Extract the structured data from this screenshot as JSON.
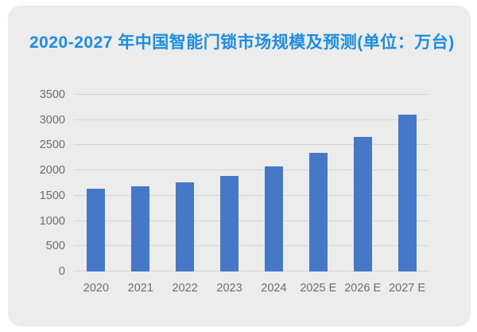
{
  "page": {
    "background": "#ffffff",
    "card_background": "#ececec"
  },
  "title": {
    "text": "2020-2027 年中国智能门锁市场规模及预测(单位：万台)",
    "color": "#1b8de6"
  },
  "chart_data": {
    "type": "bar",
    "title": "2020-2027 年中国智能门锁市场规模及预测(单位：万台)",
    "categories": [
      "2020",
      "2021",
      "2022",
      "2023",
      "2024",
      "2025 E",
      "2026 E",
      "2027 E"
    ],
    "values": [
      1640,
      1690,
      1760,
      1900,
      2080,
      2350,
      2670,
      3100
    ],
    "unit": "万台",
    "xlabel": "",
    "ylabel": "",
    "ylim": [
      0,
      3500
    ],
    "yticks": [
      0,
      500,
      1000,
      1500,
      2000,
      2500,
      3000,
      3500
    ],
    "grid": true,
    "legend": "none",
    "bar_color": "#4678c8",
    "gridline_color": "#d6d6d6",
    "axis_label_color": "#6e6e6e"
  }
}
